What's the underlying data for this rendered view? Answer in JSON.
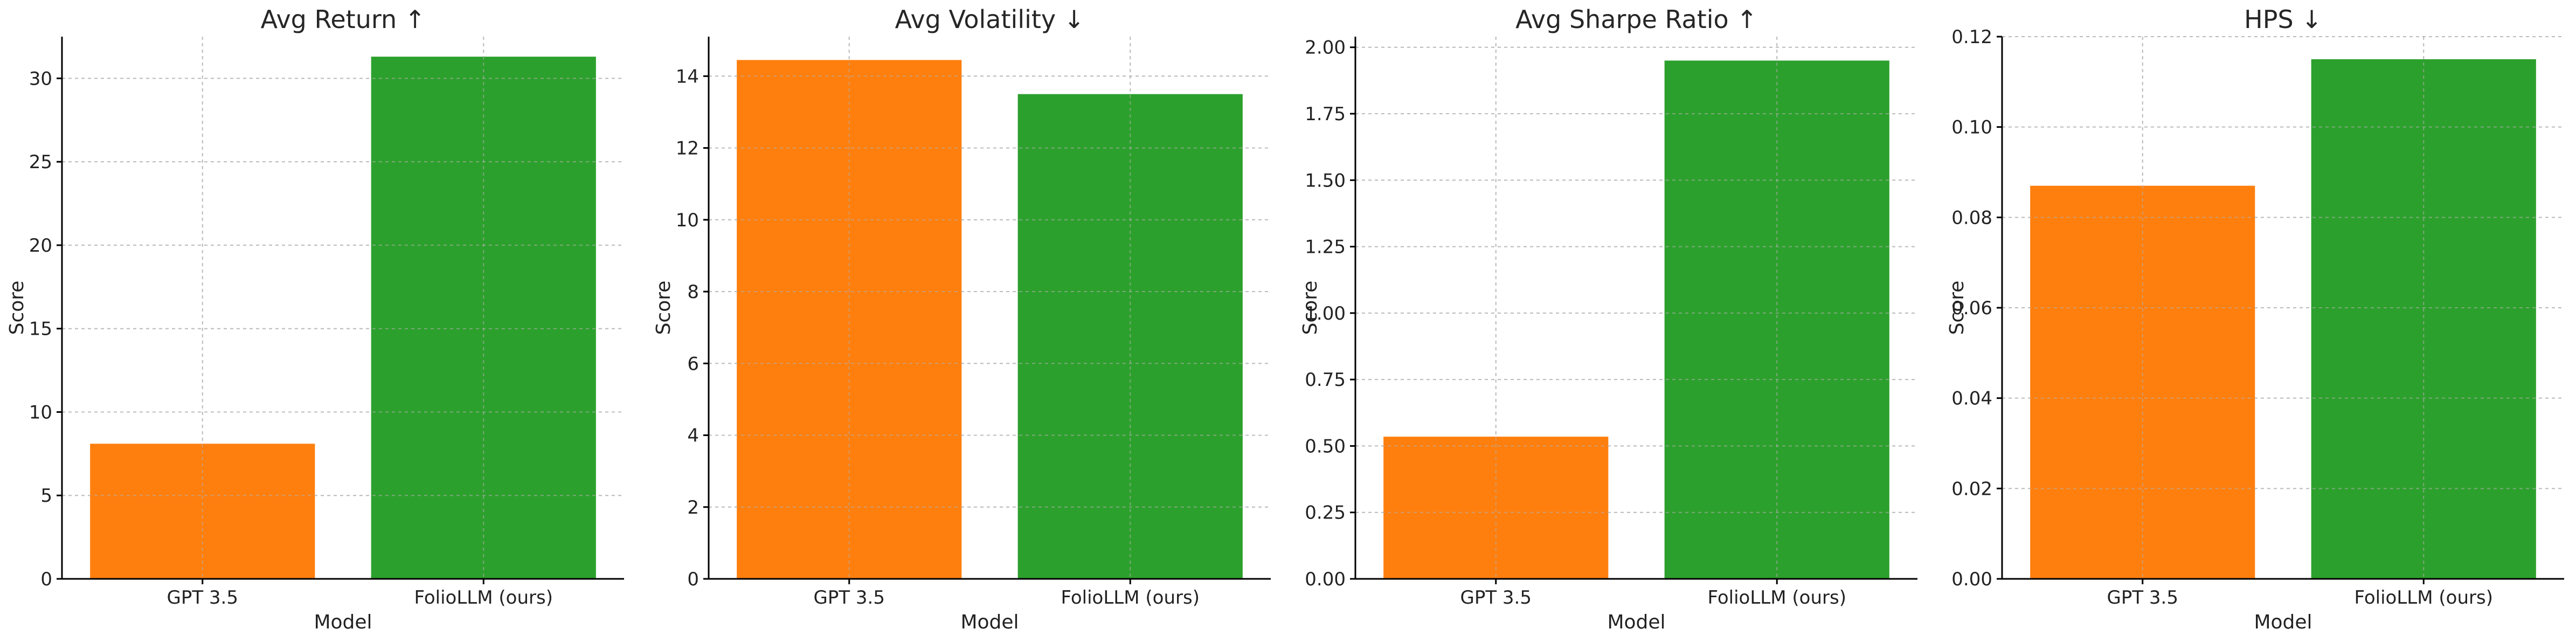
{
  "chart_data": [
    {
      "type": "bar",
      "title": "Avg Return ↑",
      "xlabel": "Model",
      "ylabel": "Score",
      "categories": [
        "GPT 3.5",
        "FolioLLM (ours)"
      ],
      "values": [
        8.1,
        31.3
      ],
      "colors": [
        "#ff7f0e",
        "#2ca02c"
      ],
      "ylim": [
        0,
        32.5
      ],
      "yticks": [
        0,
        5,
        10,
        15,
        20,
        25,
        30
      ],
      "ytick_labels": [
        "0",
        "5",
        "10",
        "15",
        "20",
        "25",
        "30"
      ],
      "grid": true
    },
    {
      "type": "bar",
      "title": "Avg Volatility ↓",
      "xlabel": "Model",
      "ylabel": "Score",
      "categories": [
        "GPT 3.5",
        "FolioLLM (ours)"
      ],
      "values": [
        14.45,
        13.5
      ],
      "colors": [
        "#ff7f0e",
        "#2ca02c"
      ],
      "ylim": [
        0,
        15.1
      ],
      "yticks": [
        0,
        2,
        4,
        6,
        8,
        10,
        12,
        14
      ],
      "ytick_labels": [
        "0",
        "2",
        "4",
        "6",
        "8",
        "10",
        "12",
        "14"
      ],
      "grid": true
    },
    {
      "type": "bar",
      "title": "Avg Sharpe Ratio ↑",
      "xlabel": "Model",
      "ylabel": "Score",
      "categories": [
        "GPT 3.5",
        "FolioLLM (ours)"
      ],
      "values": [
        0.535,
        1.95
      ],
      "colors": [
        "#ff7f0e",
        "#2ca02c"
      ],
      "ylim": [
        0,
        2.04
      ],
      "yticks": [
        0,
        0.25,
        0.5,
        0.75,
        1.0,
        1.25,
        1.5,
        1.75,
        2.0
      ],
      "ytick_labels": [
        "0.00",
        "0.25",
        "0.50",
        "0.75",
        "1.00",
        "1.25",
        "1.50",
        "1.75",
        "2.00"
      ],
      "grid": true
    },
    {
      "type": "bar",
      "title": "HPS ↓",
      "xlabel": "Model",
      "ylabel": "Score",
      "categories": [
        "GPT 3.5",
        "FolioLLM (ours)"
      ],
      "values": [
        0.087,
        0.115
      ],
      "colors": [
        "#ff7f0e",
        "#2ca02c"
      ],
      "ylim": [
        0,
        0.12
      ],
      "yticks": [
        0,
        0.02,
        0.04,
        0.06,
        0.08,
        0.1,
        0.12
      ],
      "ytick_labels": [
        "0.00",
        "0.02",
        "0.04",
        "0.06",
        "0.08",
        "0.10",
        "0.12"
      ],
      "grid": true
    }
  ]
}
